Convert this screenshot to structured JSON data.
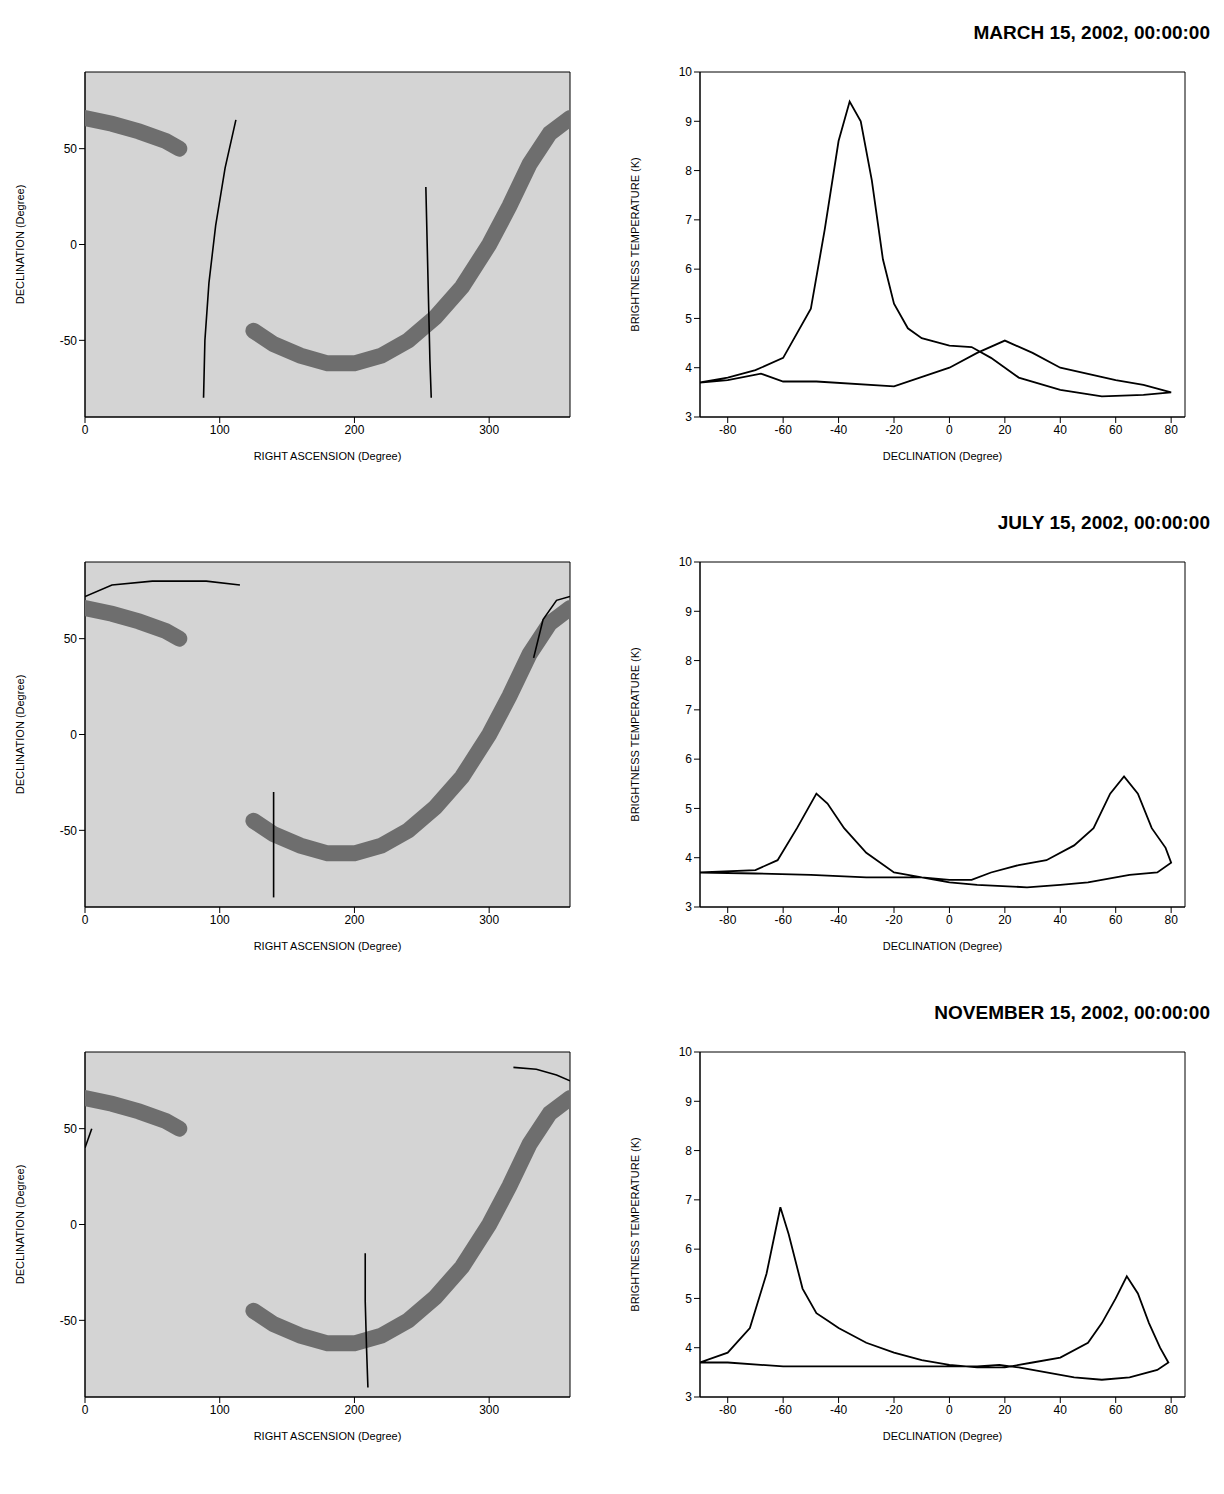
{
  "chart_data": [
    {
      "type": "map",
      "x_label": "RIGHT ASCENSION (Degree)",
      "y_label": "DECLINATION (Degree)",
      "xlim": [
        0,
        360
      ],
      "xticks": [
        0,
        100,
        200,
        300
      ],
      "ylim": [
        -90,
        90
      ],
      "yticks": [
        -50,
        0,
        50
      ],
      "galactic_plane": [
        {
          "ra": [
            0,
            20,
            40,
            60,
            70
          ],
          "dec": [
            66,
            63,
            59,
            54,
            50
          ]
        },
        {
          "ra": [
            125,
            140,
            160,
            180,
            200,
            220,
            240,
            260,
            280,
            300,
            315,
            330,
            345,
            360
          ],
          "dec": [
            -45,
            -52,
            -58,
            -62,
            -62,
            -58,
            -50,
            -38,
            -22,
            0,
            20,
            42,
            58,
            66
          ]
        }
      ],
      "scan_path": [
        {
          "ra": [
            112,
            104,
            97,
            92,
            89,
            88
          ],
          "dec": [
            65,
            40,
            10,
            -20,
            -50,
            -80
          ]
        },
        {
          "ra": [
            253,
            254,
            255,
            256,
            257
          ],
          "dec": [
            30,
            0,
            -30,
            -60,
            -80
          ]
        }
      ],
      "color": "#000000"
    },
    {
      "type": "line",
      "title": "MARCH 15, 2002, 00:00:00",
      "x_label": "DECLINATION (Degree)",
      "y_label": "BRIGHTNESS TEMPERATURE (K)",
      "xlim": [
        -90,
        85
      ],
      "xticks": [
        -80,
        -60,
        -40,
        -20,
        0,
        20,
        40,
        60,
        80
      ],
      "ylim": [
        3,
        10
      ],
      "yticks": [
        3,
        4,
        5,
        6,
        7,
        8,
        9,
        10
      ],
      "color": "#000000",
      "x": [
        -90,
        -80,
        -70,
        -60,
        -50,
        -45,
        -40,
        -36,
        -32,
        -28,
        -24,
        -20,
        -15,
        -10,
        0,
        8,
        15,
        25,
        40,
        55,
        70,
        80,
        70,
        60,
        40,
        30,
        20,
        10,
        0,
        -20,
        -48,
        -60,
        -68,
        -80,
        -90
      ],
      "y": [
        3.7,
        3.8,
        3.95,
        4.2,
        5.2,
        6.8,
        8.6,
        9.4,
        9.0,
        7.8,
        6.2,
        5.3,
        4.8,
        4.6,
        4.45,
        4.42,
        4.2,
        3.8,
        3.55,
        3.42,
        3.45,
        3.5,
        3.65,
        3.75,
        4.0,
        4.3,
        4.55,
        4.3,
        4.0,
        3.62,
        3.72,
        3.72,
        3.88,
        3.75,
        3.7
      ]
    },
    {
      "type": "map",
      "x_label": "RIGHT ASCENSION (Degree)",
      "y_label": "DECLINATION (Degree)",
      "xlim": [
        0,
        360
      ],
      "xticks": [
        0,
        100,
        200,
        300
      ],
      "ylim": [
        -90,
        90
      ],
      "yticks": [
        -50,
        0,
        50
      ],
      "galactic_plane": [
        {
          "ra": [
            0,
            20,
            40,
            60,
            70
          ],
          "dec": [
            66,
            63,
            59,
            54,
            50
          ]
        },
        {
          "ra": [
            125,
            140,
            160,
            180,
            200,
            220,
            240,
            260,
            280,
            300,
            315,
            330,
            345,
            360
          ],
          "dec": [
            -45,
            -52,
            -58,
            -62,
            -62,
            -58,
            -50,
            -38,
            -22,
            0,
            20,
            42,
            58,
            66
          ]
        }
      ],
      "scan_path": [
        {
          "ra": [
            0,
            20,
            50,
            90,
            115
          ],
          "dec": [
            72,
            78,
            80,
            80,
            78
          ]
        },
        {
          "ra": [
            140,
            140,
            140
          ],
          "dec": [
            -30,
            -60,
            -85
          ]
        },
        {
          "ra": [
            333,
            340,
            350,
            360
          ],
          "dec": [
            40,
            60,
            70,
            72
          ]
        }
      ],
      "color": "#000000"
    },
    {
      "type": "line",
      "title": "JULY 15, 2002, 00:00:00",
      "x_label": "DECLINATION (Degree)",
      "y_label": "BRIGHTNESS TEMPERATURE (K)",
      "xlim": [
        -90,
        85
      ],
      "xticks": [
        -80,
        -60,
        -40,
        -20,
        0,
        20,
        40,
        60,
        80
      ],
      "ylim": [
        3,
        10
      ],
      "yticks": [
        3,
        4,
        5,
        6,
        7,
        8,
        9,
        10
      ],
      "color": "#000000",
      "x": [
        -90,
        -70,
        -62,
        -55,
        -48,
        -44,
        -38,
        -30,
        -20,
        -10,
        0,
        8,
        15,
        25,
        35,
        45,
        52,
        58,
        63,
        68,
        73,
        78,
        80,
        75,
        65,
        50,
        40,
        28,
        10,
        0,
        -10,
        -30,
        -50,
        -70,
        -90
      ],
      "y": [
        3.7,
        3.75,
        3.95,
        4.6,
        5.3,
        5.1,
        4.6,
        4.1,
        3.7,
        3.6,
        3.55,
        3.55,
        3.7,
        3.85,
        3.95,
        4.25,
        4.6,
        5.3,
        5.65,
        5.3,
        4.6,
        4.2,
        3.9,
        3.7,
        3.65,
        3.5,
        3.45,
        3.4,
        3.45,
        3.5,
        3.6,
        3.6,
        3.65,
        3.68,
        3.7
      ]
    },
    {
      "type": "map",
      "x_label": "RIGHT ASCENSION (Degree)",
      "y_label": "DECLINATION (Degree)",
      "xlim": [
        0,
        360
      ],
      "xticks": [
        0,
        100,
        200,
        300
      ],
      "ylim": [
        -90,
        90
      ],
      "yticks": [
        -50,
        0,
        50
      ],
      "galactic_plane": [
        {
          "ra": [
            0,
            20,
            40,
            60,
            70
          ],
          "dec": [
            66,
            63,
            59,
            54,
            50
          ]
        },
        {
          "ra": [
            125,
            140,
            160,
            180,
            200,
            220,
            240,
            260,
            280,
            300,
            315,
            330,
            345,
            360
          ],
          "dec": [
            -45,
            -52,
            -58,
            -62,
            -62,
            -58,
            -50,
            -38,
            -22,
            0,
            20,
            42,
            58,
            66
          ]
        }
      ],
      "scan_path": [
        {
          "ra": [
            208,
            208,
            209,
            210
          ],
          "dec": [
            -15,
            -40,
            -65,
            -85
          ]
        },
        {
          "ra": [
            318,
            335,
            350,
            360
          ],
          "dec": [
            82,
            81,
            78,
            75
          ]
        },
        {
          "ra": [
            0,
            5
          ],
          "dec": [
            40,
            50
          ]
        }
      ],
      "color": "#000000"
    },
    {
      "type": "line",
      "title": "NOVEMBER 15, 2002, 00:00:00",
      "x_label": "DECLINATION (Degree)",
      "y_label": "BRIGHTNESS TEMPERATURE (K)",
      "xlim": [
        -90,
        85
      ],
      "xticks": [
        -80,
        -60,
        -40,
        -20,
        0,
        20,
        40,
        60,
        80
      ],
      "ylim": [
        3,
        10
      ],
      "yticks": [
        3,
        4,
        5,
        6,
        7,
        8,
        9,
        10
      ],
      "color": "#000000",
      "x": [
        -90,
        -80,
        -72,
        -66,
        -61,
        -58,
        -53,
        -48,
        -44,
        -40,
        -30,
        -20,
        -10,
        0,
        10,
        20,
        30,
        40,
        50,
        55,
        60,
        64,
        68,
        72,
        76,
        79,
        75,
        65,
        55,
        45,
        35,
        25,
        18,
        10,
        0,
        -20,
        -40,
        -60,
        -80,
        -90
      ],
      "y": [
        3.7,
        3.9,
        4.4,
        5.5,
        6.85,
        6.3,
        5.2,
        4.7,
        4.55,
        4.4,
        4.1,
        3.9,
        3.75,
        3.65,
        3.6,
        3.6,
        3.7,
        3.8,
        4.1,
        4.5,
        5.0,
        5.45,
        5.1,
        4.5,
        4.0,
        3.7,
        3.55,
        3.4,
        3.35,
        3.4,
        3.5,
        3.6,
        3.65,
        3.62,
        3.62,
        3.62,
        3.62,
        3.62,
        3.7,
        3.7
      ]
    }
  ]
}
